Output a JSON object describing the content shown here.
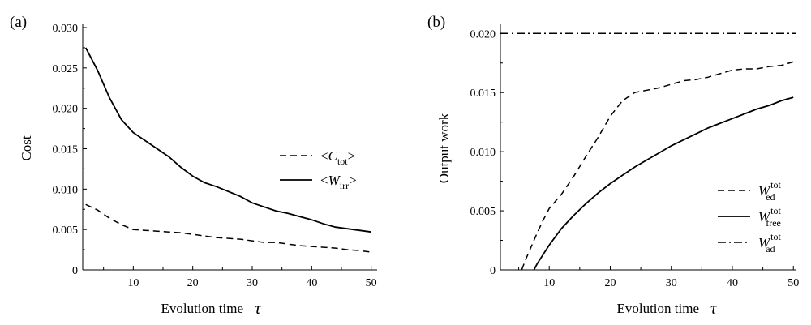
{
  "chart_data": [
    {
      "type": "line",
      "panel_label": "(a)",
      "xlabel": "Evolution time",
      "xlabel_symbol": "τ",
      "ylabel": "Cost",
      "xlim": [
        1.5,
        51
      ],
      "ylim": [
        0,
        0.03
      ],
      "xticks": [
        10,
        20,
        30,
        40,
        50
      ],
      "yticks": [
        0,
        0.005,
        0.01,
        0.015,
        0.02,
        0.025,
        0.03
      ],
      "ytick_labels": [
        "0",
        "0.005",
        "0.010",
        "0.015",
        "0.020",
        "0.025",
        "0.030"
      ],
      "grid": false,
      "legend_position": "right",
      "series": [
        {
          "name": "<Ctot>",
          "legend": {
            "prefix": "<",
            "main": "C",
            "sub": "tot",
            "sup": "",
            "suffix": ">"
          },
          "style": "dashed",
          "x": [
            2,
            4,
            6,
            8,
            10,
            12,
            14,
            16,
            18,
            20,
            22,
            24,
            26,
            28,
            30,
            32,
            34,
            36,
            38,
            40,
            42,
            44,
            46,
            48,
            50
          ],
          "y": [
            0.0081,
            0.0074,
            0.0064,
            0.0056,
            0.005,
            0.0049,
            0.0048,
            0.0047,
            0.0046,
            0.0044,
            0.0042,
            0.004,
            0.0039,
            0.0038,
            0.0036,
            0.0034,
            0.0034,
            0.0032,
            0.003,
            0.0029,
            0.0028,
            0.0027,
            0.0025,
            0.0024,
            0.0022
          ]
        },
        {
          "name": "<Wirr>",
          "legend": {
            "prefix": "<",
            "main": "W",
            "sub": "irr",
            "sup": "",
            "suffix": ">"
          },
          "style": "solid",
          "x": [
            2,
            4,
            6,
            8,
            10,
            12,
            14,
            16,
            18,
            20,
            22,
            24,
            26,
            28,
            30,
            32,
            34,
            36,
            38,
            40,
            42,
            44,
            46,
            48,
            50
          ],
          "y": [
            0.0275,
            0.0247,
            0.0213,
            0.0186,
            0.017,
            0.016,
            0.015,
            0.014,
            0.0127,
            0.0116,
            0.0108,
            0.0103,
            0.0097,
            0.0091,
            0.0083,
            0.0078,
            0.0073,
            0.007,
            0.0066,
            0.0062,
            0.0057,
            0.0053,
            0.0051,
            0.0049,
            0.0047
          ]
        }
      ]
    },
    {
      "type": "line",
      "panel_label": "(b)",
      "xlabel": "Evolution time",
      "xlabel_symbol": "τ",
      "ylabel": "Output work",
      "xlim": [
        2,
        50.5
      ],
      "ylim": [
        0,
        0.0205
      ],
      "xticks": [
        10,
        20,
        30,
        40,
        50
      ],
      "yticks": [
        0,
        0.005,
        0.01,
        0.015,
        0.02
      ],
      "ytick_labels": [
        "0",
        "0.005",
        "0.010",
        "0.015",
        "0.020"
      ],
      "grid": false,
      "legend_position": "bottom-right",
      "series": [
        {
          "name": "Wedtot",
          "legend": {
            "prefix": "",
            "main": "W",
            "sub": "ed",
            "sup": "tot",
            "suffix": ""
          },
          "style": "dashed",
          "x": [
            5.5,
            6,
            7,
            8,
            9,
            10,
            12,
            14,
            16,
            18,
            20,
            22,
            24,
            26,
            28,
            30,
            32,
            34,
            36,
            38,
            40,
            42,
            44,
            46,
            48,
            50
          ],
          "y": [
            0,
            0.0007,
            0.0019,
            0.0031,
            0.0042,
            0.0052,
            0.0064,
            0.0079,
            0.0096,
            0.0112,
            0.013,
            0.0143,
            0.015,
            0.0152,
            0.0154,
            0.0157,
            0.016,
            0.0161,
            0.0163,
            0.0166,
            0.0169,
            0.017,
            0.017,
            0.0172,
            0.0173,
            0.0176
          ]
        },
        {
          "name": "Wfreetot",
          "legend": {
            "prefix": "",
            "main": "W",
            "sub": "free",
            "sup": "tot",
            "suffix": ""
          },
          "style": "solid",
          "x": [
            7.5,
            8,
            10,
            12,
            14,
            16,
            18,
            20,
            22,
            24,
            26,
            28,
            30,
            32,
            34,
            36,
            38,
            40,
            42,
            44,
            46,
            48,
            50
          ],
          "y": [
            0,
            0.0005,
            0.0021,
            0.0035,
            0.0046,
            0.0056,
            0.0065,
            0.0073,
            0.008,
            0.0087,
            0.0093,
            0.0099,
            0.0105,
            0.011,
            0.0115,
            0.012,
            0.0124,
            0.0128,
            0.0132,
            0.0136,
            0.0139,
            0.0143,
            0.0146
          ]
        },
        {
          "name": "Wadtot",
          "legend": {
            "prefix": "",
            "main": "W",
            "sub": "ad",
            "sup": "tot",
            "suffix": ""
          },
          "style": "dashdot",
          "x": [
            2,
            50.5
          ],
          "y": [
            0.02,
            0.02
          ]
        }
      ]
    }
  ]
}
